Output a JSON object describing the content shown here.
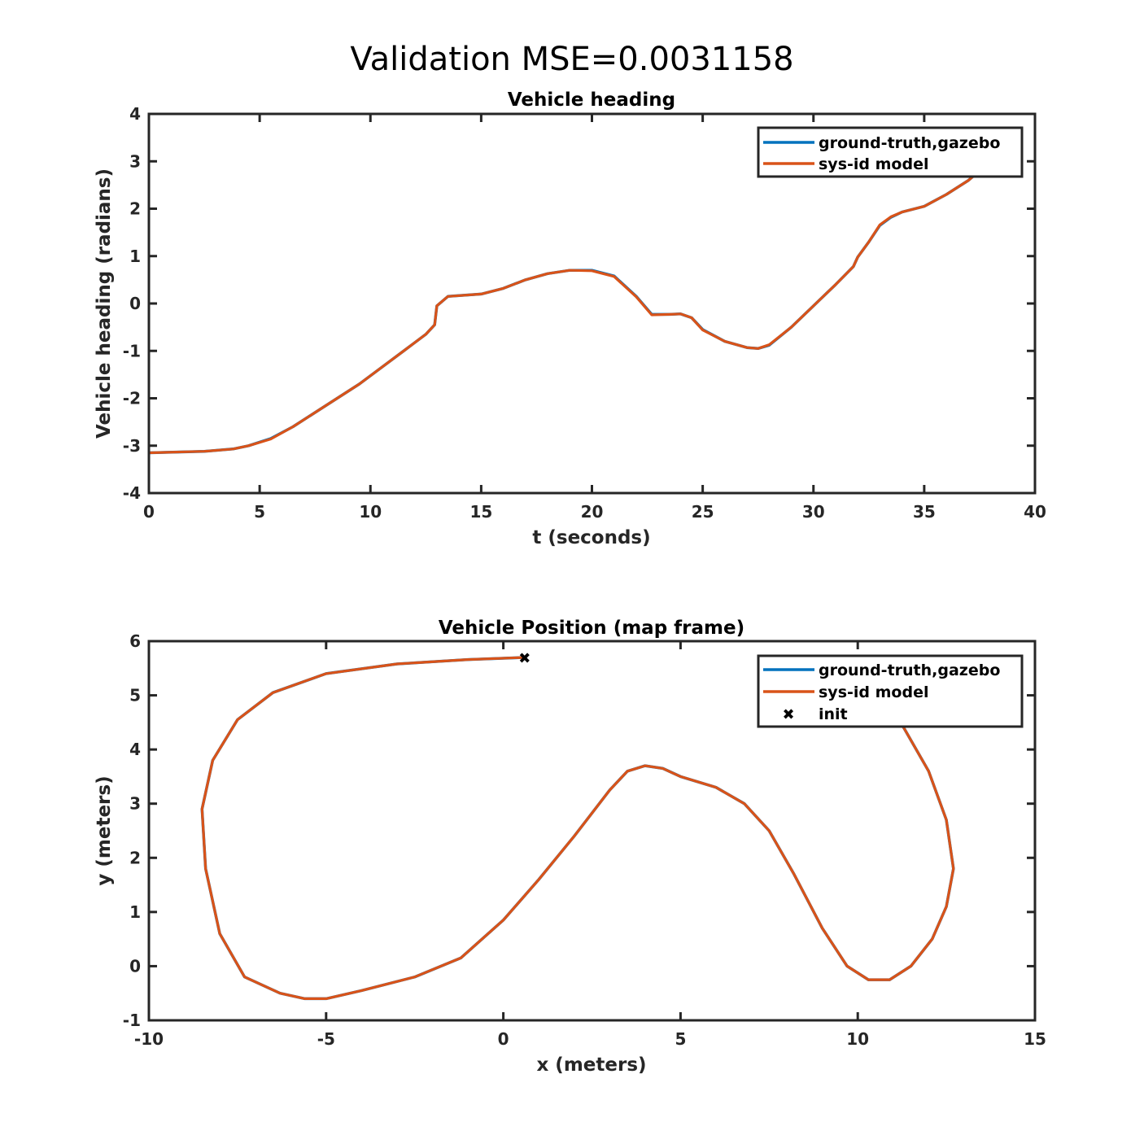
{
  "suptitle": "Validation MSE=0.0031158",
  "colors": {
    "ground_truth": "#0072BD",
    "model": "#D95319",
    "init": "#000000",
    "axes": "#262626"
  },
  "chart_data": [
    {
      "type": "line",
      "title": "Vehicle heading",
      "xlabel": "t (seconds)",
      "ylabel": "Vehicle heading (radians)",
      "xlim": [
        0,
        40
      ],
      "ylim": [
        -4,
        4
      ],
      "xticks": [
        "0",
        "5",
        "10",
        "15",
        "20",
        "25",
        "30",
        "35",
        "40"
      ],
      "yticks": [
        "-4",
        "-3",
        "-2",
        "-1",
        "0",
        "1",
        "2",
        "3",
        "4"
      ],
      "legend": [
        "ground-truth,gazebo",
        "sys-id model"
      ],
      "legend_position": "top-right",
      "series": [
        {
          "name": "ground-truth,gazebo",
          "x": [
            0,
            2.5,
            3.8,
            4.5,
            5.5,
            6.5,
            7.5,
            8.5,
            9.5,
            10.5,
            11.5,
            12.5,
            12.9,
            13.0,
            13.5,
            15,
            16,
            17,
            18,
            19,
            20,
            21,
            22,
            22.7,
            23.5,
            24,
            24.5,
            25,
            26,
            27,
            27.5,
            28,
            29,
            30,
            31,
            31.8,
            32,
            32.5,
            33,
            33.5,
            34,
            35,
            36,
            37,
            38,
            38.5
          ],
          "y": [
            -3.15,
            -3.12,
            -3.07,
            -3.0,
            -2.85,
            -2.6,
            -2.3,
            -2.0,
            -1.7,
            -1.35,
            -1.0,
            -0.65,
            -0.45,
            -0.05,
            0.15,
            0.2,
            0.32,
            0.5,
            0.63,
            0.7,
            0.7,
            0.58,
            0.15,
            -0.23,
            -0.23,
            -0.22,
            -0.3,
            -0.55,
            -0.8,
            -0.93,
            -0.95,
            -0.88,
            -0.5,
            -0.05,
            0.4,
            0.78,
            0.98,
            1.3,
            1.65,
            1.82,
            1.93,
            2.05,
            2.3,
            2.6,
            3.0,
            3.2
          ]
        },
        {
          "name": "sys-id model",
          "x": [
            0,
            2.5,
            3.8,
            4.5,
            5.5,
            6.5,
            7.5,
            8.5,
            9.5,
            10.5,
            11.5,
            12.5,
            12.9,
            13.0,
            13.5,
            15,
            16,
            17,
            18,
            19,
            20,
            21,
            22,
            22.7,
            23.5,
            24,
            24.5,
            25,
            26,
            27,
            27.5,
            28,
            29,
            30,
            31,
            31.8,
            32,
            32.5,
            33,
            33.5,
            34,
            35,
            36,
            37,
            38,
            38.5
          ],
          "y": [
            -3.15,
            -3.12,
            -3.07,
            -3.0,
            -2.86,
            -2.6,
            -2.3,
            -2.0,
            -1.7,
            -1.35,
            -1.0,
            -0.65,
            -0.45,
            -0.05,
            0.15,
            0.2,
            0.32,
            0.5,
            0.63,
            0.7,
            0.69,
            0.57,
            0.14,
            -0.24,
            -0.23,
            -0.22,
            -0.3,
            -0.56,
            -0.8,
            -0.93,
            -0.95,
            -0.87,
            -0.5,
            -0.05,
            0.4,
            0.78,
            0.98,
            1.3,
            1.66,
            1.83,
            1.93,
            2.05,
            2.3,
            2.6,
            3.0,
            3.2
          ]
        }
      ]
    },
    {
      "type": "line",
      "title": "Vehicle Position (map frame)",
      "xlabel": "x (meters)",
      "ylabel": "y (meters)",
      "xlim": [
        -10,
        15
      ],
      "ylim": [
        -1,
        6
      ],
      "xticks": [
        "-10",
        "-5",
        "0",
        "5",
        "10",
        "15"
      ],
      "yticks": [
        "-1",
        "0",
        "1",
        "2",
        "3",
        "4",
        "5",
        "6"
      ],
      "legend": [
        "ground-truth,gazebo",
        "sys-id model",
        "init"
      ],
      "legend_position": "top-right",
      "init": {
        "name": "init",
        "x": 0.6,
        "y": 5.7
      },
      "series": [
        {
          "name": "ground-truth,gazebo",
          "x": [
            0.6,
            -1.0,
            -3.0,
            -5.0,
            -6.5,
            -7.5,
            -8.2,
            -8.5,
            -8.4,
            -8.0,
            -7.3,
            -6.3,
            -5.6,
            -5.0,
            -4.0,
            -2.5,
            -1.2,
            0.0,
            1.0,
            2.0,
            3.0,
            3.5,
            4.0,
            4.5,
            5.0,
            6.0,
            6.8,
            7.5,
            8.2,
            9.0,
            9.7,
            10.3,
            10.9,
            11.5,
            12.1,
            12.5,
            12.7,
            12.5,
            12.0,
            11.3,
            10.5,
            10.0
          ],
          "y": [
            5.7,
            5.66,
            5.58,
            5.4,
            5.05,
            4.55,
            3.8,
            2.9,
            1.8,
            0.6,
            -0.2,
            -0.5,
            -0.6,
            -0.6,
            -0.45,
            -0.2,
            0.15,
            0.85,
            1.6,
            2.4,
            3.25,
            3.6,
            3.7,
            3.65,
            3.5,
            3.3,
            3.0,
            2.5,
            1.7,
            0.7,
            0.0,
            -0.25,
            -0.25,
            0.0,
            0.5,
            1.1,
            1.8,
            2.7,
            3.6,
            4.4,
            5.1,
            5.5
          ]
        },
        {
          "name": "sys-id model",
          "x": [
            0.6,
            -1.0,
            -3.0,
            -5.0,
            -6.5,
            -7.5,
            -8.2,
            -8.5,
            -8.4,
            -8.0,
            -7.3,
            -6.3,
            -5.6,
            -5.0,
            -4.0,
            -2.5,
            -1.2,
            0.0,
            1.0,
            2.0,
            3.0,
            3.5,
            4.0,
            4.5,
            5.0,
            6.0,
            6.8,
            7.5,
            8.2,
            9.0,
            9.7,
            10.3,
            10.9,
            11.5,
            12.1,
            12.5,
            12.7,
            12.5,
            12.0,
            11.3,
            10.5,
            10.0
          ],
          "y": [
            5.7,
            5.66,
            5.58,
            5.4,
            5.05,
            4.55,
            3.8,
            2.9,
            1.8,
            0.6,
            -0.2,
            -0.5,
            -0.6,
            -0.6,
            -0.45,
            -0.2,
            0.15,
            0.85,
            1.6,
            2.4,
            3.25,
            3.6,
            3.7,
            3.65,
            3.5,
            3.3,
            3.0,
            2.5,
            1.7,
            0.7,
            0.0,
            -0.25,
            -0.25,
            0.0,
            0.5,
            1.1,
            1.8,
            2.7,
            3.6,
            4.4,
            5.1,
            5.5
          ]
        }
      ]
    }
  ]
}
